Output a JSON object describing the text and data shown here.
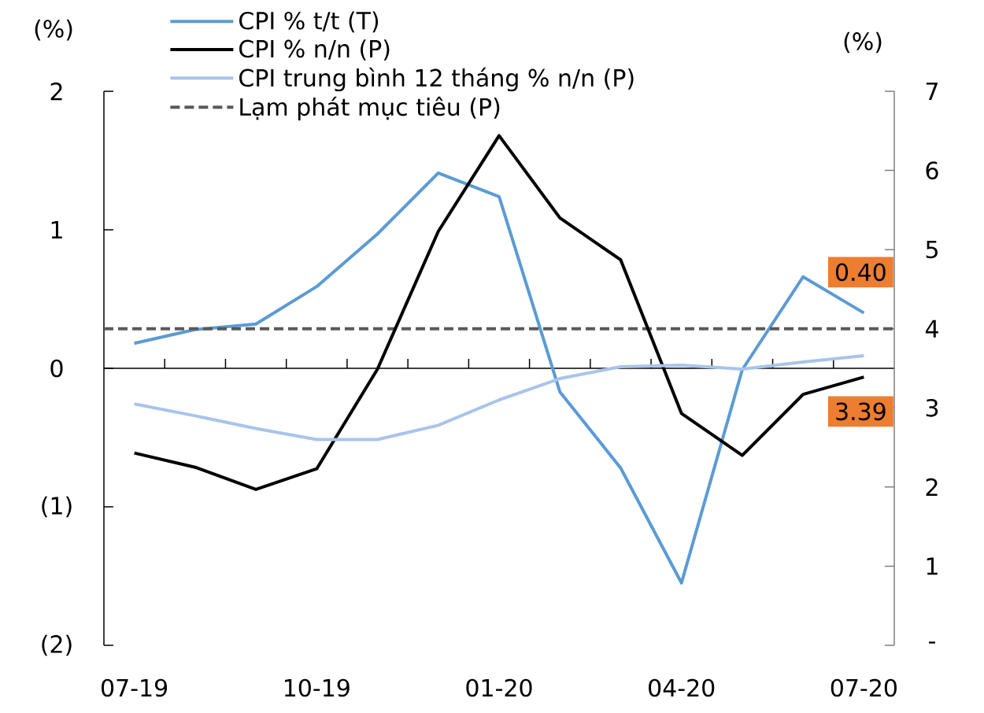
{
  "chart_data": {
    "type": "line",
    "ylabel": "(%)",
    "y2label": "(%)",
    "categories": [
      "07-19",
      null,
      null,
      "10-19",
      null,
      null,
      "01-20",
      null,
      null,
      "04-20",
      null,
      null,
      "07-20"
    ],
    "series": [
      {
        "name": "CPI % t/t (T)",
        "color": "#5b9bd5",
        "values": [
          0.18,
          0.28,
          0.32,
          0.59,
          0.97,
          1.41,
          1.24,
          -0.17,
          -0.72,
          -1.55,
          -0.01,
          0.66,
          0.4
        ],
        "value_labels": [
          null,
          null,
          null,
          null,
          null,
          null,
          null,
          null,
          null,
          null,
          null,
          null,
          "0.40"
        ]
      },
      {
        "name": "CPI % n/n (P)",
        "color": "#000000",
        "axis": "y2",
        "values": [
          2.43,
          2.25,
          1.97,
          2.23,
          3.49,
          5.23,
          6.44,
          5.4,
          4.87,
          2.93,
          2.4,
          3.17,
          3.39
        ],
        "value_labels": [
          null,
          null,
          null,
          null,
          null,
          null,
          null,
          null,
          null,
          null,
          null,
          null,
          "3.39"
        ]
      },
      {
        "name": "CPI trung bình 12 tháng % n/n (P)",
        "color": "#a9c4eb",
        "axis": "y2",
        "values": [
          3.05,
          2.9,
          2.74,
          2.6,
          2.6,
          2.78,
          3.1,
          3.37,
          3.52,
          3.54,
          3.49,
          3.58,
          3.66
        ]
      }
    ],
    "ylim": [
      -2,
      2
    ],
    "yticks": [
      {
        "value": -2,
        "label": "(2)"
      },
      {
        "value": -1,
        "label": "(1)"
      },
      0,
      1,
      2
    ],
    "y2lim": [
      0,
      7
    ],
    "y2ticks": [
      {
        "value": 0,
        "label": "-"
      },
      1,
      2,
      3,
      4,
      5,
      6,
      7
    ],
    "ref_lines": [
      {
        "axis": "y2",
        "value": 4,
        "label": "Lạm phát mục tiêu (P)",
        "color": "#595959",
        "line_style": "dashed"
      }
    ],
    "legend": "top"
  }
}
